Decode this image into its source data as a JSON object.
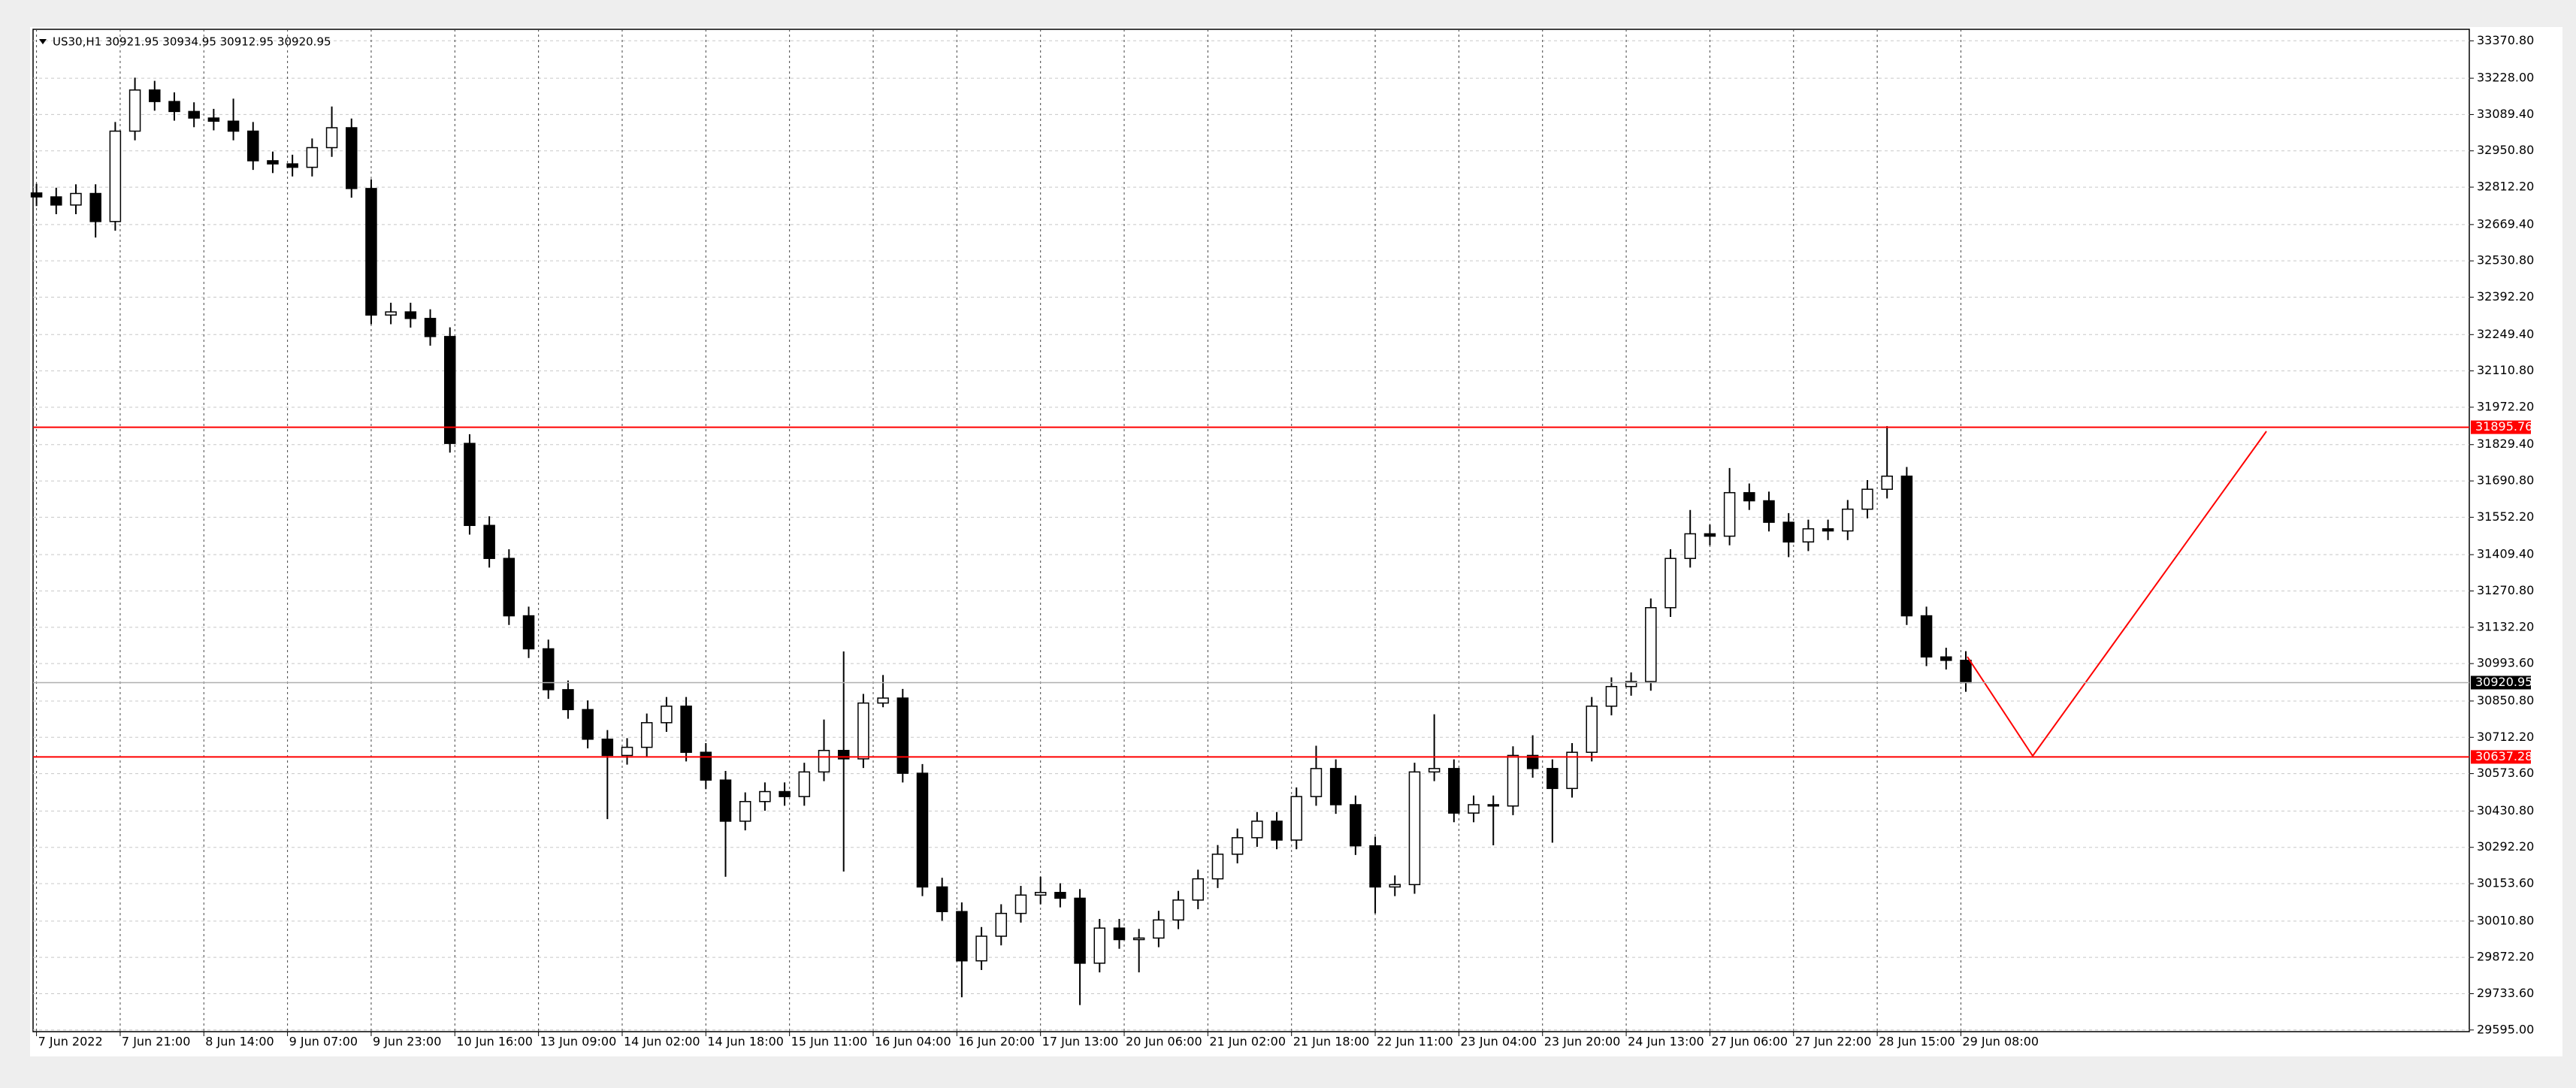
{
  "chart_data": {
    "type": "candlestick",
    "symbol_info": "US30,H1  30921.95 30934.95 30912.95 30920.95",
    "x": [
      0,
      4,
      8,
      12,
      16,
      20,
      24,
      28,
      32,
      36,
      40,
      44,
      48,
      52,
      56,
      60,
      64,
      68,
      72,
      76,
      80,
      84,
      88,
      92,
      96,
      100,
      104,
      108,
      112,
      116,
      120,
      124,
      128,
      132,
      136,
      140,
      144,
      148,
      152,
      156,
      160,
      164,
      168,
      172,
      176,
      180,
      184,
      188,
      192,
      196,
      200,
      204,
      208,
      212,
      216,
      220,
      224,
      228,
      232,
      236,
      240,
      244,
      248,
      252,
      256,
      260,
      264,
      268,
      272,
      276,
      280,
      284,
      288,
      292,
      296,
      300,
      304,
      308,
      312,
      316,
      320,
      324,
      328,
      332,
      336,
      340,
      344,
      348,
      352,
      356,
      360,
      364,
      368,
      372,
      376,
      380,
      384,
      388,
      392
    ],
    "open": [
      32790,
      32775,
      32744,
      32788,
      32681,
      33026,
      33183,
      33139,
      33101,
      33076,
      33064,
      33026,
      32913,
      32901,
      32888,
      32963,
      33039,
      32807,
      32324,
      32336,
      32311,
      32242,
      31834,
      31521,
      31395,
      31176,
      31050,
      30894,
      30818,
      30705,
      30643,
      30674,
      30768,
      30831,
      30655,
      30549,
      30392,
      30467,
      30505,
      30486,
      30580,
      30662,
      30630,
      30843,
      30862,
      30575,
      30141,
      30047,
      29859,
      29953,
      30040,
      30110,
      30120,
      30098,
      29850,
      29984,
      29940,
      29946,
      30015,
      30091,
      30172,
      30266,
      30329,
      30392,
      30320,
      30486,
      30593,
      30455,
      30298,
      30141,
      30150,
      30580,
      30593,
      30423,
      30455,
      30450,
      30643,
      30593,
      30517,
      30655,
      30831,
      30906,
      30925,
      31207,
      31395,
      31489,
      31480,
      31646,
      31615,
      31533,
      31458,
      31508,
      31500,
      31583,
      31659,
      31709,
      31176,
      31019,
      31006
    ],
    "high": [
      32825,
      32810,
      32823,
      32823,
      33061,
      33230,
      33218,
      33174,
      33136,
      33111,
      33150,
      33061,
      32948,
      32936,
      32998,
      33120,
      33074,
      32842,
      32371,
      32371,
      32346,
      32277,
      31869,
      31556,
      31430,
      31211,
      31085,
      30929,
      30853,
      30740,
      30709,
      30803,
      30866,
      30866,
      30690,
      30584,
      30502,
      30540,
      30540,
      30615,
      30780,
      31040,
      30878,
      30950,
      30897,
      30610,
      30176,
      30082,
      29988,
      30075,
      30145,
      30180,
      30155,
      30133,
      30019,
      30019,
      29981,
      30050,
      30126,
      30207,
      30301,
      30364,
      30427,
      30427,
      30521,
      30680,
      30628,
      30490,
      30333,
      30185,
      30615,
      30800,
      30628,
      30490,
      30490,
      30678,
      30720,
      30628,
      30690,
      30866,
      30941,
      30960,
      31242,
      31430,
      31580,
      31524,
      31740,
      31681,
      31650,
      31568,
      31543,
      31543,
      31618,
      31694,
      31900,
      31744,
      31211,
      31054,
      31041
    ],
    "low": [
      32740,
      32709,
      32709,
      32620,
      32646,
      32991,
      33104,
      33066,
      33041,
      33029,
      32991,
      32878,
      32866,
      32853,
      32853,
      32928,
      32772,
      32289,
      32289,
      32276,
      32207,
      31799,
      31486,
      31360,
      31141,
      31015,
      30859,
      30783,
      30670,
      30400,
      30608,
      30639,
      30733,
      30620,
      30514,
      30180,
      30357,
      30432,
      30451,
      30451,
      30545,
      30200,
      30595,
      30827,
      30540,
      30106,
      30012,
      29720,
      29824,
      29918,
      30005,
      30075,
      30063,
      29690,
      29815,
      29905,
      29815,
      29911,
      29980,
      30056,
      30137,
      30231,
      30294,
      30285,
      30285,
      30451,
      30420,
      30263,
      30040,
      30106,
      30115,
      30545,
      30388,
      30388,
      30300,
      30415,
      30558,
      30310,
      30482,
      30620,
      30796,
      30871,
      30890,
      31172,
      31360,
      31445,
      31445,
      31580,
      31498,
      31400,
      31423,
      31465,
      31465,
      31548,
      31624,
      31141,
      30984,
      30971,
      30886
    ],
    "close": [
      32775,
      32744,
      32788,
      32681,
      33026,
      33183,
      33139,
      33101,
      33076,
      33064,
      33026,
      32913,
      32901,
      32888,
      32963,
      33039,
      32807,
      32324,
      32336,
      32311,
      32242,
      31834,
      31521,
      31395,
      31176,
      31050,
      30894,
      30818,
      30705,
      30643,
      30674,
      30768,
      30831,
      30655,
      30549,
      30392,
      30467,
      30505,
      30486,
      30580,
      30662,
      30630,
      30843,
      30862,
      30575,
      30141,
      30047,
      29859,
      29953,
      30040,
      30110,
      30120,
      30098,
      29850,
      29984,
      29940,
      29946,
      30015,
      30091,
      30172,
      30266,
      30329,
      30392,
      30320,
      30486,
      30593,
      30455,
      30298,
      30141,
      30150,
      30580,
      30593,
      30423,
      30455,
      30450,
      30643,
      30593,
      30517,
      30655,
      30831,
      30906,
      30925,
      31207,
      31395,
      31489,
      31480,
      31646,
      31615,
      31533,
      31458,
      31508,
      31500,
      31583,
      31659,
      31709,
      31176,
      31019,
      31006,
      30920.95
    ],
    "xlim": [
      -0.7,
      494.3
    ],
    "ylim": [
      29588.7,
      33414.7
    ],
    "xticks": [
      {
        "value": 0,
        "label": "7 Jun 2022"
      },
      {
        "value": 17,
        "label": "7 Jun 21:00"
      },
      {
        "value": 34,
        "label": "8 Jun 14:00"
      },
      {
        "value": 51,
        "label": "9 Jun 07:00"
      },
      {
        "value": 68,
        "label": "9 Jun 23:00"
      },
      {
        "value": 85,
        "label": "10 Jun 16:00"
      },
      {
        "value": 102,
        "label": "13 Jun 09:00"
      },
      {
        "value": 119,
        "label": "14 Jun 02:00"
      },
      {
        "value": 136,
        "label": "14 Jun 18:00"
      },
      {
        "value": 153,
        "label": "15 Jun 11:00"
      },
      {
        "value": 170,
        "label": "16 Jun 04:00"
      },
      {
        "value": 187,
        "label": "16 Jun 20:00"
      },
      {
        "value": 204,
        "label": "17 Jun 13:00"
      },
      {
        "value": 221,
        "label": "20 Jun 06:00"
      },
      {
        "value": 238,
        "label": "21 Jun 02:00"
      },
      {
        "value": 255,
        "label": "21 Jun 18:00"
      },
      {
        "value": 272,
        "label": "22 Jun 11:00"
      },
      {
        "value": 289,
        "label": "23 Jun 04:00"
      },
      {
        "value": 306,
        "label": "23 Jun 20:00"
      },
      {
        "value": 323,
        "label": "24 Jun 13:00"
      },
      {
        "value": 340,
        "label": "27 Jun 06:00"
      },
      {
        "value": 357,
        "label": "27 Jun 22:00"
      },
      {
        "value": 374,
        "label": "28 Jun 15:00"
      },
      {
        "value": 391,
        "label": "29 Jun 08:00"
      }
    ],
    "yticks": [
      {
        "value": 33370.8,
        "label": "33370.80"
      },
      {
        "value": 33228,
        "label": "33228.00"
      },
      {
        "value": 33089.4,
        "label": "33089.40"
      },
      {
        "value": 32950.8,
        "label": "32950.80"
      },
      {
        "value": 32812.2,
        "label": "32812.20"
      },
      {
        "value": 32669.4,
        "label": "32669.40"
      },
      {
        "value": 32530.8,
        "label": "32530.80"
      },
      {
        "value": 32392.2,
        "label": "32392.20"
      },
      {
        "value": 32249.4,
        "label": "32249.40"
      },
      {
        "value": 32110.8,
        "label": "32110.80"
      },
      {
        "value": 31972.2,
        "label": "31972.20"
      },
      {
        "value": 31829.4,
        "label": "31829.40"
      },
      {
        "value": 31690.8,
        "label": "31690.80"
      },
      {
        "value": 31552.2,
        "label": "31552.20"
      },
      {
        "value": 31409.4,
        "label": "31409.40"
      },
      {
        "value": 31270.8,
        "label": "31270.80"
      },
      {
        "value": 31132.2,
        "label": "31132.20"
      },
      {
        "value": 30993.6,
        "label": "30993.60"
      },
      {
        "value": 30850.8,
        "label": "30850.80"
      },
      {
        "value": 30712.2,
        "label": "30712.20"
      },
      {
        "value": 30573.6,
        "label": "30573.60"
      },
      {
        "value": 30430.8,
        "label": "30430.80"
      },
      {
        "value": 30292.2,
        "label": "30292.20"
      },
      {
        "value": 30153.6,
        "label": "30153.60"
      },
      {
        "value": 30010.8,
        "label": "30010.80"
      },
      {
        "value": 29872.2,
        "label": "29872.20"
      },
      {
        "value": 29733.6,
        "label": "29733.60"
      },
      {
        "value": 29595,
        "label": "29595.00"
      }
    ],
    "levels": [
      {
        "value": 31895.76,
        "color": "#ff0000"
      },
      {
        "value": 30637.28,
        "color": "#ff0000"
      }
    ],
    "last_price": 30920.95,
    "last_price_color": "#000000",
    "up_color": "#ffffff",
    "down_color": "#000000",
    "candle_edge": "#000000",
    "grid": true
  }
}
